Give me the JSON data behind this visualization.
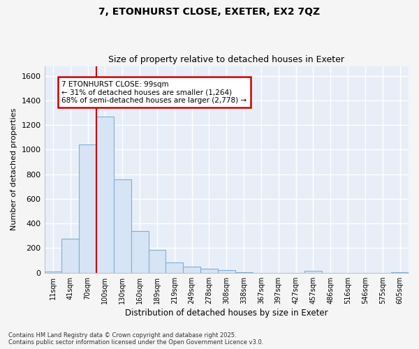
{
  "title_line1": "7, ETONHURST CLOSE, EXETER, EX2 7QZ",
  "title_line2": "Size of property relative to detached houses in Exeter",
  "xlabel": "Distribution of detached houses by size in Exeter",
  "ylabel": "Number of detached properties",
  "bar_color": "#d6e4f5",
  "bar_edge_color": "#7fafd4",
  "categories": [
    "11sqm",
    "41sqm",
    "70sqm",
    "100sqm",
    "130sqm",
    "160sqm",
    "189sqm",
    "219sqm",
    "249sqm",
    "278sqm",
    "308sqm",
    "338sqm",
    "367sqm",
    "397sqm",
    "427sqm",
    "457sqm",
    "486sqm",
    "516sqm",
    "546sqm",
    "575sqm",
    "605sqm"
  ],
  "values": [
    10,
    275,
    1040,
    1270,
    760,
    338,
    185,
    82,
    47,
    35,
    22,
    5,
    0,
    0,
    0,
    15,
    0,
    0,
    0,
    0,
    5
  ],
  "ylim": [
    0,
    1680
  ],
  "yticks": [
    0,
    200,
    400,
    600,
    800,
    1000,
    1200,
    1400,
    1600
  ],
  "property_line_label": "7 ETONHURST CLOSE: 99sqm",
  "annotation_line1": "← 31% of detached houses are smaller (1,264)",
  "annotation_line2": "68% of semi-detached houses are larger (2,778) →",
  "annotation_box_color": "#ffffff",
  "annotation_box_edge_color": "#cc0000",
  "red_line_color": "#cc0000",
  "background_color": "#e8eef8",
  "plot_bg_color": "#e8eef8",
  "fig_bg_color": "#f5f5f5",
  "grid_color": "#ffffff",
  "footer_line1": "Contains HM Land Registry data © Crown copyright and database right 2025.",
  "footer_line2": "Contains public sector information licensed under the Open Government Licence v3.0.",
  "red_line_bar_index": 3
}
